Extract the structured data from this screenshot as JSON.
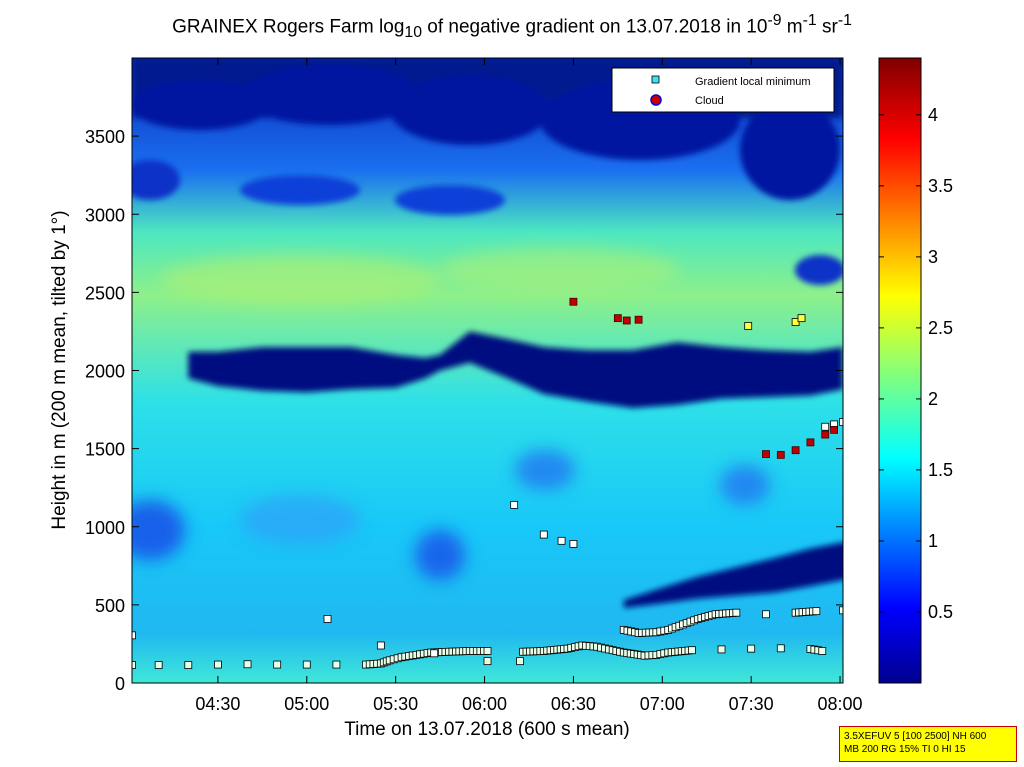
{
  "title": {
    "prefix": "GRAINEX Rogers Farm log",
    "log_sub": "10",
    "middle": " of negative gradient on 13.07.2018 in 10",
    "exp1": "-9",
    "mid2": " m",
    "exp2": "-1",
    "mid3": " sr",
    "exp3": "-1"
  },
  "footer": {
    "line1": "3.5XEFUV 5 [100 2500] NH 600",
    "line2": "MB 200 RG 15% TI 0 HI 15"
  },
  "chart_data": {
    "type": "heatmap",
    "xlabel": "Time on 13.07.2018 (600 s mean)",
    "ylabel": "Height in m (200 m mean, tilted by 1°)",
    "x_ticks": [
      "04:30",
      "05:00",
      "05:30",
      "06:00",
      "06:30",
      "07:00",
      "07:30",
      "08:00"
    ],
    "x_tick_minutes": [
      270,
      300,
      330,
      360,
      390,
      420,
      450,
      480
    ],
    "xlim_minutes": [
      241,
      481
    ],
    "y_ticks": [
      0,
      500,
      1000,
      1500,
      2000,
      2500,
      3000,
      3500
    ],
    "ylim": [
      0,
      4000
    ],
    "colorbar": {
      "ticks": [
        0.5,
        1,
        1.5,
        2,
        2.5,
        3,
        3.5,
        4
      ],
      "tick_labels": [
        "0.5",
        "1",
        "1.5",
        "2",
        "2.5",
        "3",
        "3.5",
        "4"
      ],
      "range": [
        0,
        4.4
      ]
    },
    "legend": {
      "placement": "top-right",
      "entries": [
        {
          "label": "Gradient local minimum",
          "marker": "square",
          "color": "#40e0f0"
        },
        {
          "label": "Cloud",
          "marker": "circle",
          "color": "#cc0000"
        }
      ]
    },
    "features": {
      "dark_layer_upper": [
        [
          260,
          1950
        ],
        [
          270,
          1900
        ],
        [
          285,
          1870
        ],
        [
          300,
          1860
        ],
        [
          315,
          1880
        ],
        [
          330,
          1890
        ],
        [
          340,
          1950
        ],
        [
          345,
          2000
        ],
        [
          355,
          2050
        ],
        [
          368,
          1950
        ],
        [
          380,
          1850
        ],
        [
          395,
          1800
        ],
        [
          410,
          1760
        ],
        [
          425,
          1780
        ],
        [
          440,
          1820
        ],
        [
          455,
          1830
        ],
        [
          470,
          1840
        ],
        [
          481,
          1880
        ]
      ],
      "dark_layer_upper_top": [
        [
          260,
          2120
        ],
        [
          270,
          2120
        ],
        [
          285,
          2150
        ],
        [
          300,
          2150
        ],
        [
          315,
          2150
        ],
        [
          330,
          2100
        ],
        [
          340,
          2080
        ],
        [
          345,
          2100
        ],
        [
          355,
          2250
        ],
        [
          368,
          2200
        ],
        [
          380,
          2150
        ],
        [
          395,
          2130
        ],
        [
          410,
          2130
        ],
        [
          425,
          2180
        ],
        [
          440,
          2150
        ],
        [
          455,
          2130
        ],
        [
          470,
          2120
        ],
        [
          481,
          2150
        ]
      ],
      "dark_layer_lower_top": [
        [
          407,
          530
        ],
        [
          420,
          610
        ],
        [
          432,
          680
        ],
        [
          445,
          740
        ],
        [
          458,
          800
        ],
        [
          470,
          860
        ],
        [
          481,
          900
        ]
      ],
      "dark_layer_lower_bottom": [
        [
          407,
          480
        ],
        [
          420,
          510
        ],
        [
          432,
          540
        ],
        [
          445,
          560
        ],
        [
          458,
          580
        ],
        [
          470,
          620
        ],
        [
          481,
          660
        ]
      ]
    },
    "gradient_minima_lower": [
      [
        241,
        115
      ],
      [
        250,
        115
      ],
      [
        260,
        115
      ],
      [
        270,
        118
      ],
      [
        280,
        120
      ],
      [
        290,
        118
      ],
      [
        300,
        118
      ],
      [
        310,
        118
      ],
      [
        320,
        118
      ],
      [
        325,
        125
      ],
      [
        328,
        145
      ],
      [
        332,
        165
      ],
      [
        337,
        180
      ],
      [
        342,
        195
      ],
      [
        348,
        200
      ],
      [
        355,
        205
      ],
      [
        361,
        205
      ],
      [
        361,
        140
      ],
      [
        372,
        140
      ],
      [
        373,
        200
      ],
      [
        380,
        205
      ],
      [
        388,
        220
      ],
      [
        393,
        240
      ],
      [
        398,
        232
      ],
      [
        402,
        215
      ],
      [
        407,
        195
      ],
      [
        414,
        175
      ],
      [
        418,
        180
      ],
      [
        422,
        195
      ],
      [
        430,
        210
      ],
      [
        440,
        215
      ],
      [
        450,
        220
      ],
      [
        460,
        222
      ],
      [
        470,
        218
      ],
      [
        474,
        205
      ]
    ],
    "gradient_minima_upper": [
      [
        407,
        340
      ],
      [
        412,
        320
      ],
      [
        418,
        325
      ],
      [
        422,
        340
      ],
      [
        427,
        375
      ],
      [
        432,
        410
      ],
      [
        438,
        440
      ],
      [
        445,
        450
      ],
      [
        455,
        440
      ],
      [
        465,
        450
      ],
      [
        472,
        460
      ],
      [
        481,
        465
      ]
    ],
    "gradient_minima_other": [
      [
        241,
        305
      ],
      [
        307,
        410
      ],
      [
        325,
        240
      ],
      [
        343,
        190
      ],
      [
        370,
        1140
      ],
      [
        380,
        950
      ],
      [
        386,
        910
      ],
      [
        390,
        890
      ],
      [
        449,
        2285
      ],
      [
        465,
        2310
      ],
      [
        467,
        2335
      ],
      [
        475,
        1640
      ],
      [
        478,
        1655
      ],
      [
        481,
        1670
      ]
    ],
    "clouds": [
      [
        390,
        2440
      ],
      [
        405,
        2335
      ],
      [
        408,
        2320
      ],
      [
        412,
        2325
      ],
      [
        455,
        1465
      ],
      [
        460,
        1460
      ],
      [
        465,
        1490
      ],
      [
        470,
        1540
      ],
      [
        475,
        1590
      ],
      [
        478,
        1620
      ]
    ]
  }
}
